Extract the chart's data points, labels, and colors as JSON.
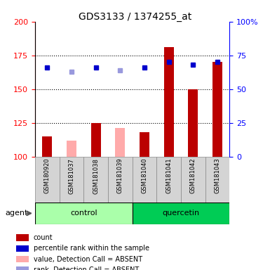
{
  "title": "GDS3133 / 1374255_at",
  "samples": [
    "GSM180920",
    "GSM181037",
    "GSM181038",
    "GSM181039",
    "GSM181040",
    "GSM181041",
    "GSM181042",
    "GSM181043"
  ],
  "count_present": [
    115,
    null,
    125,
    null,
    118,
    181,
    150,
    170
  ],
  "count_absent": [
    null,
    112,
    null,
    121,
    null,
    null,
    null,
    null
  ],
  "rank_present": [
    166,
    null,
    166,
    null,
    166,
    170,
    168,
    170
  ],
  "rank_absent": [
    null,
    163,
    null,
    164,
    null,
    null,
    null,
    null
  ],
  "ylim_left": [
    100,
    200
  ],
  "yticks_left": [
    100,
    125,
    150,
    175,
    200
  ],
  "yticks_right": [
    0,
    25,
    50,
    75,
    100
  ],
  "bar_color_present": "#bb0000",
  "bar_color_absent": "#ffaaaa",
  "rank_color_present": "#0000cc",
  "rank_color_absent": "#9999dd",
  "group_control_color": "#aaffaa",
  "group_quercetin_color": "#00cc55",
  "col_bg_color": "#d4d4d4",
  "bar_width": 0.4,
  "dotted_lines": [
    125,
    150,
    175
  ],
  "legend_items": [
    {
      "label": "count",
      "color": "#bb0000"
    },
    {
      "label": "percentile rank within the sample",
      "color": "#0000cc"
    },
    {
      "label": "value, Detection Call = ABSENT",
      "color": "#ffaaaa"
    },
    {
      "label": "rank, Detection Call = ABSENT",
      "color": "#9999dd"
    }
  ]
}
